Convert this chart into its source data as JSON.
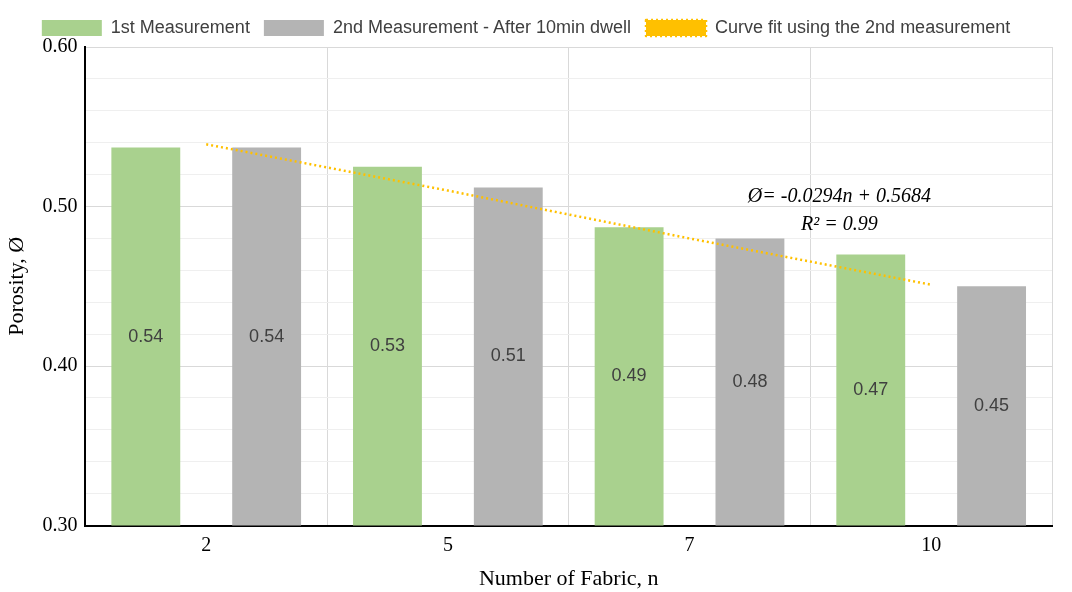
{
  "chart_data": {
    "type": "bar",
    "xlabel": "Number of Fabric, n",
    "ylabel": "Porosity, Ø",
    "categories": [
      "2",
      "5",
      "7",
      "10"
    ],
    "series": [
      {
        "name": "1st Measurement",
        "color": "#a9d18e",
        "values": [
          0.537,
          0.525,
          0.487,
          0.47
        ],
        "value_labels": [
          "0.54",
          "0.53",
          "0.49",
          "0.47"
        ]
      },
      {
        "name": "2nd Measurement - After 10min dwell",
        "color": "#b4b4b4",
        "values": [
          0.537,
          0.512,
          0.48,
          0.45
        ],
        "value_labels": [
          "0.54",
          "0.51",
          "0.48",
          "0.45"
        ]
      },
      {
        "name": "Curve fit using the 2nd measurement",
        "type": "line",
        "color": "#ffc000",
        "line_style": "dotted",
        "marker": "none",
        "x": [
          "2",
          "5",
          "7",
          "10"
        ],
        "values": [
          0.539,
          0.51,
          0.48,
          0.451
        ]
      }
    ],
    "ylim": [
      0.3,
      0.6
    ],
    "yticks": [
      {
        "value": 0.3,
        "label": "0.30"
      },
      {
        "value": 0.32,
        "label": null
      },
      {
        "value": 0.34,
        "label": null
      },
      {
        "value": 0.36,
        "label": null
      },
      {
        "value": 0.38,
        "label": null
      },
      {
        "value": 0.4,
        "label": "0.40"
      },
      {
        "value": 0.42,
        "label": null
      },
      {
        "value": 0.44,
        "label": null
      },
      {
        "value": 0.46,
        "label": null
      },
      {
        "value": 0.48,
        "label": null
      },
      {
        "value": 0.5,
        "label": "0.50"
      },
      {
        "value": 0.52,
        "label": null
      },
      {
        "value": 0.54,
        "label": null
      },
      {
        "value": 0.56,
        "label": null
      },
      {
        "value": 0.58,
        "label": null
      },
      {
        "value": 0.6,
        "label": "0.60"
      }
    ],
    "annotations": [
      "Ø= -0.0294n + 0.5684",
      "R² = 0.99"
    ],
    "grid": true,
    "legend": "top"
  }
}
